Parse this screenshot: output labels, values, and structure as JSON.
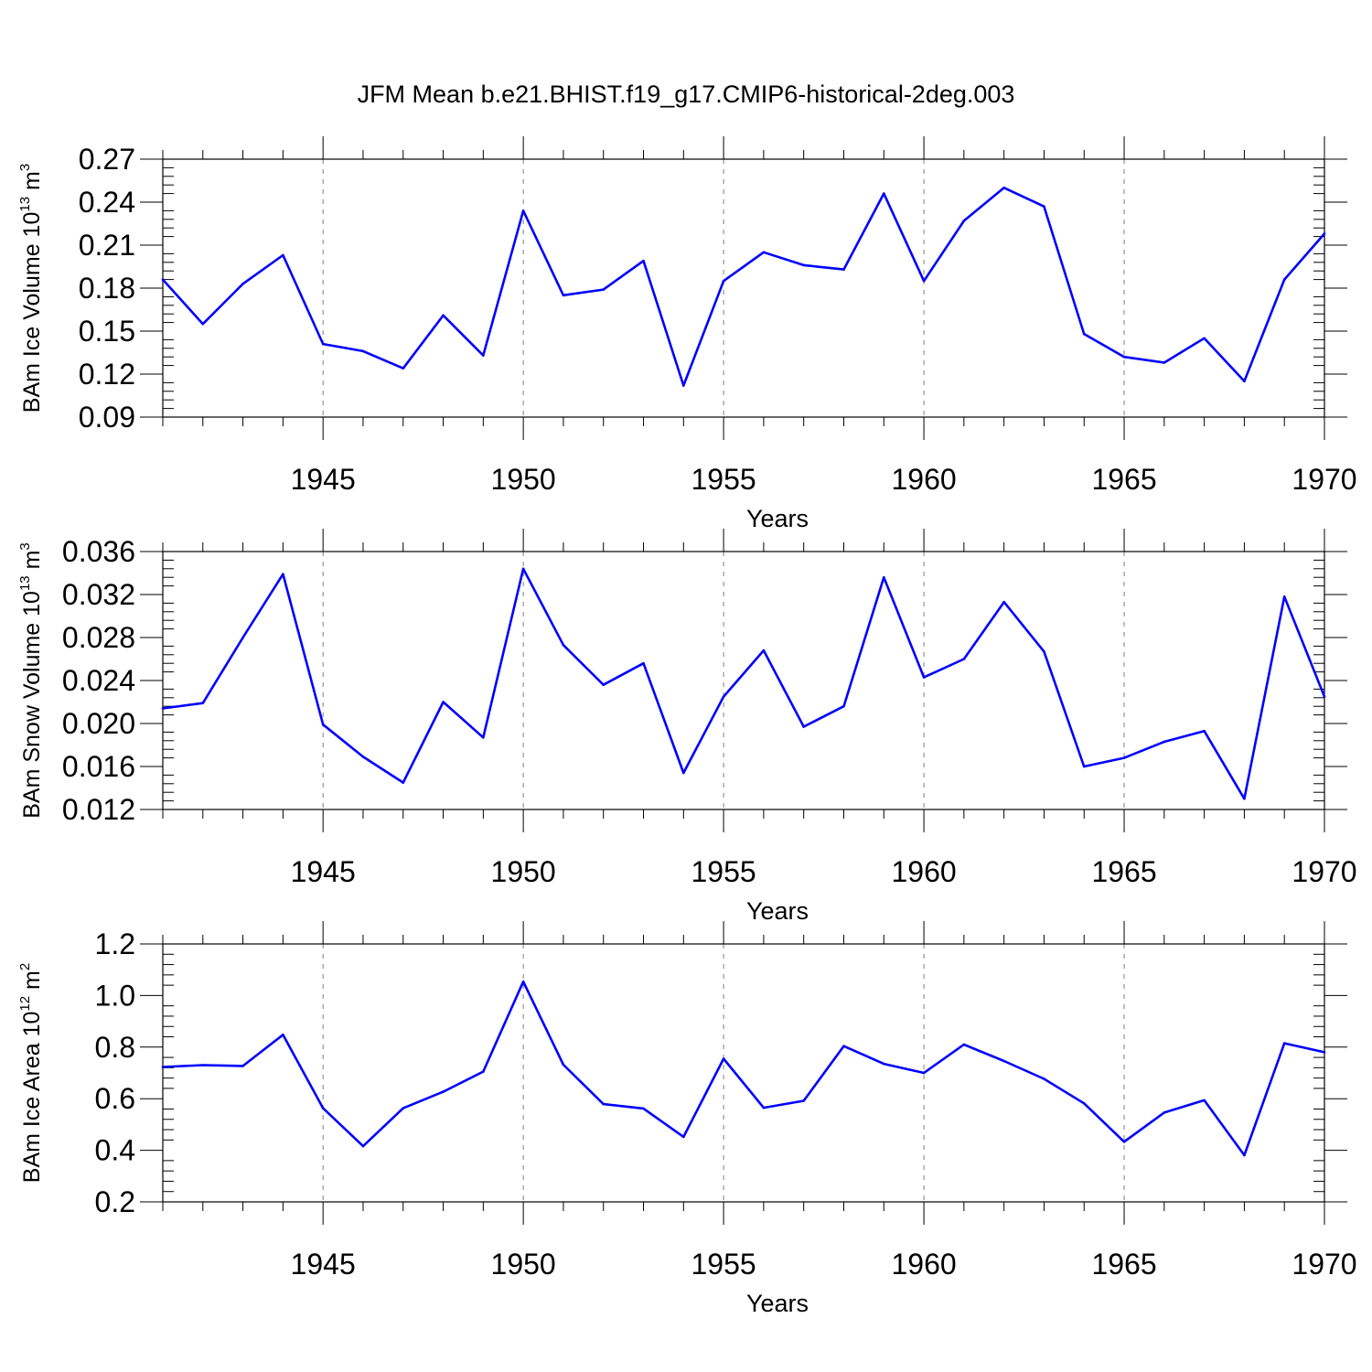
{
  "figure": {
    "title": "JFM Mean b.e21.BHIST.f19_g17.CMIP6-historical-2deg.003",
    "line_color": "#0000ff",
    "axis_color": "#000000",
    "grid_color": "#7f7f7f"
  },
  "chart_data": [
    {
      "type": "line",
      "xlabel": "Years",
      "ylabel": {
        "main": "BAm Ice Volume 10",
        "sup": "13",
        "unit": " m",
        "unit_sup": "3"
      },
      "xlim": [
        1941,
        1970
      ],
      "ylim": [
        0.09,
        0.27
      ],
      "yticks": [
        "0.09",
        "0.12",
        "0.15",
        "0.18",
        "0.21",
        "0.24",
        "0.27"
      ],
      "xticks": [
        "1945",
        "1950",
        "1955",
        "1960",
        "1965",
        "1970"
      ],
      "grid": "vertical dashed at major x ticks",
      "series": [
        {
          "x": [
            1941,
            1942,
            1943,
            1944,
            1945,
            1946,
            1947,
            1948,
            1949,
            1950,
            1951,
            1952,
            1953,
            1954,
            1955,
            1956,
            1957,
            1958,
            1959,
            1960,
            1961,
            1962,
            1963,
            1964,
            1965,
            1966,
            1967,
            1968,
            1969,
            1970
          ],
          "values": [
            0.186,
            0.155,
            0.183,
            0.203,
            0.141,
            0.136,
            0.124,
            0.161,
            0.133,
            0.234,
            0.175,
            0.179,
            0.199,
            0.112,
            0.185,
            0.205,
            0.196,
            0.193,
            0.246,
            0.185,
            0.227,
            0.25,
            0.237,
            0.148,
            0.132,
            0.128,
            0.145,
            0.115,
            0.186,
            0.218
          ]
        }
      ]
    },
    {
      "type": "line",
      "xlabel": "Years",
      "ylabel": {
        "main": "BAm Snow Volume 10",
        "sup": "13",
        "unit": " m",
        "unit_sup": "3"
      },
      "xlim": [
        1941,
        1970
      ],
      "ylim": [
        0.012,
        0.036
      ],
      "yticks": [
        "0.012",
        "0.016",
        "0.020",
        "0.024",
        "0.028",
        "0.032",
        "0.036"
      ],
      "xticks": [
        "1945",
        "1950",
        "1955",
        "1960",
        "1965",
        "1970"
      ],
      "grid": "vertical dashed at major x ticks",
      "series": [
        {
          "x": [
            1941,
            1942,
            1943,
            1944,
            1945,
            1946,
            1947,
            1948,
            1949,
            1950,
            1951,
            1952,
            1953,
            1954,
            1955,
            1956,
            1957,
            1958,
            1959,
            1960,
            1961,
            1962,
            1963,
            1964,
            1965,
            1966,
            1967,
            1968,
            1969,
            1970
          ],
          "values": [
            0.0214,
            0.0219,
            0.028,
            0.0339,
            0.0199,
            0.0169,
            0.0145,
            0.022,
            0.0187,
            0.0344,
            0.0273,
            0.0236,
            0.0256,
            0.0154,
            0.0225,
            0.0268,
            0.0197,
            0.0216,
            0.0336,
            0.0243,
            0.026,
            0.0313,
            0.0267,
            0.016,
            0.0168,
            0.0183,
            0.0193,
            0.013,
            0.0318,
            0.0225
          ]
        }
      ]
    },
    {
      "type": "line",
      "xlabel": "Years",
      "ylabel": {
        "main": "BAm Ice Area 10",
        "sup": "12",
        "unit": " m",
        "unit_sup": "2"
      },
      "xlim": [
        1941,
        1970
      ],
      "ylim": [
        0.2,
        1.2
      ],
      "yticks": [
        "0.2",
        "0.4",
        "0.6",
        "0.8",
        "1.0",
        "1.2"
      ],
      "xticks": [
        "1945",
        "1950",
        "1955",
        "1960",
        "1965",
        "1970"
      ],
      "grid": "vertical dashed at major x ticks",
      "series": [
        {
          "x": [
            1941,
            1942,
            1943,
            1944,
            1945,
            1946,
            1947,
            1948,
            1949,
            1950,
            1951,
            1952,
            1953,
            1954,
            1955,
            1956,
            1957,
            1958,
            1959,
            1960,
            1961,
            1962,
            1963,
            1964,
            1965,
            1966,
            1967,
            1968,
            1969,
            1970
          ],
          "values": [
            0.723,
            0.73,
            0.727,
            0.848,
            0.563,
            0.416,
            0.563,
            0.627,
            0.705,
            1.054,
            0.732,
            0.579,
            0.562,
            0.452,
            0.755,
            0.565,
            0.592,
            0.804,
            0.735,
            0.7,
            0.81,
            0.746,
            0.677,
            0.582,
            0.433,
            0.546,
            0.594,
            0.381,
            0.815,
            0.78
          ]
        }
      ]
    }
  ]
}
